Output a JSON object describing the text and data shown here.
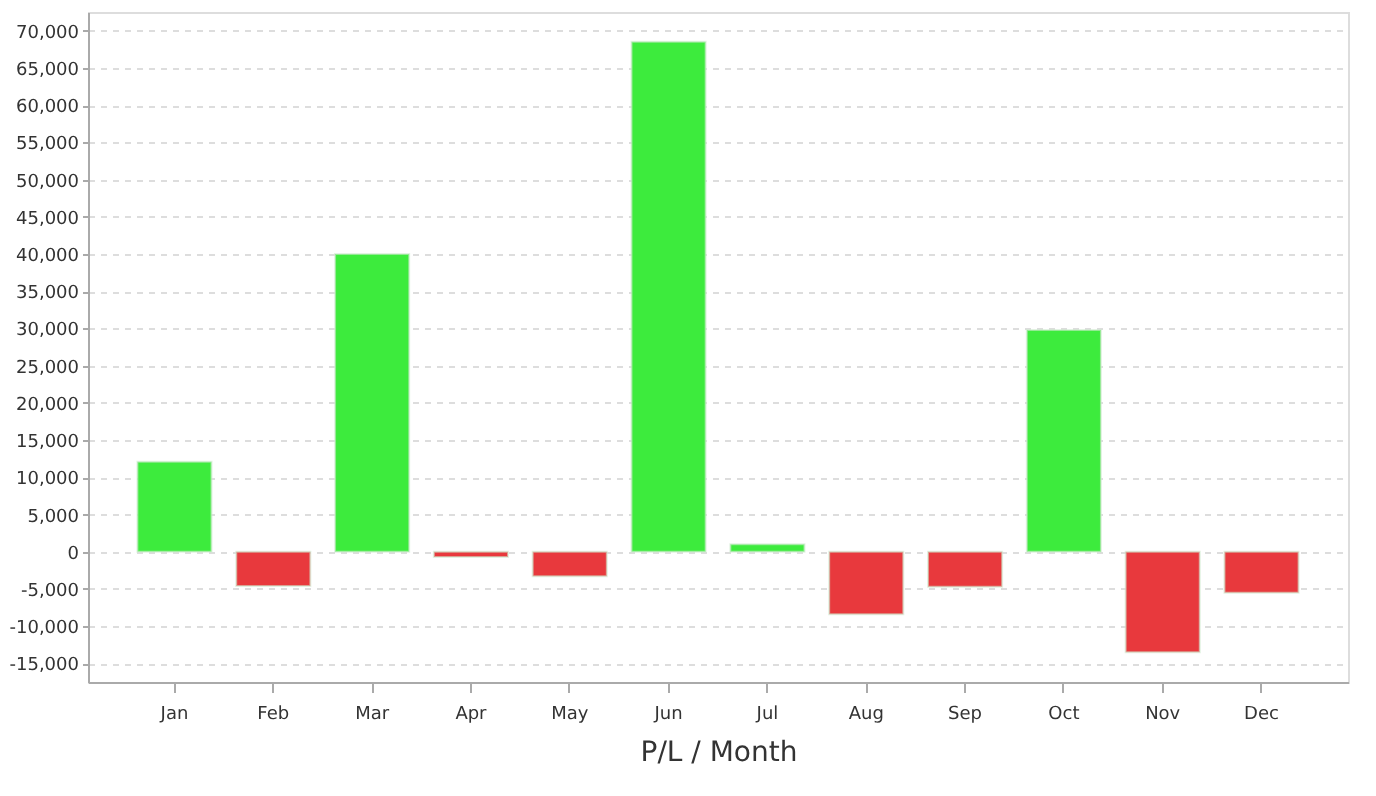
{
  "chart_data": {
    "type": "bar",
    "xlabel": "P/L / Month",
    "categories": [
      "Jan",
      "Feb",
      "Mar",
      "Apr",
      "May",
      "Jun",
      "Jul",
      "Aug",
      "Sep",
      "Oct",
      "Nov",
      "Dec"
    ],
    "values": [
      12100,
      -4600,
      40000,
      -700,
      -3300,
      68500,
      1000,
      -8400,
      -4700,
      29800,
      -13500,
      -5500
    ],
    "colors": [
      "#3deb3d",
      "#e8393d",
      "#3deb3d",
      "#e8393d",
      "#e8393d",
      "#3deb3d",
      "#3deb3d",
      "#e8393d",
      "#e8393d",
      "#3deb3d",
      "#e8393d",
      "#e8393d"
    ],
    "ylim": [
      -17500,
      72500
    ],
    "yticks": [
      {
        "value": -15000,
        "label": "-15,000"
      },
      {
        "value": -10000,
        "label": "-10,000"
      },
      {
        "value": -5000,
        "label": "-5,000"
      },
      0,
      {
        "value": 5000,
        "label": "5,000"
      },
      {
        "value": 10000,
        "label": "10,000"
      },
      {
        "value": 15000,
        "label": "15,000"
      },
      {
        "value": 20000,
        "label": "20,000"
      },
      {
        "value": 25000,
        "label": "25,000"
      },
      {
        "value": 30000,
        "label": "30,000"
      },
      {
        "value": 35000,
        "label": "35,000"
      },
      {
        "value": 40000,
        "label": "40,000"
      },
      {
        "value": 45000,
        "label": "45,000"
      },
      {
        "value": 50000,
        "label": "50,000"
      },
      {
        "value": 55000,
        "label": "55,000"
      },
      {
        "value": 60000,
        "label": "60,000"
      },
      {
        "value": 65000,
        "label": "65,000"
      },
      {
        "value": 70000,
        "label": "70,000"
      }
    ],
    "grid": "y",
    "legend": false
  }
}
